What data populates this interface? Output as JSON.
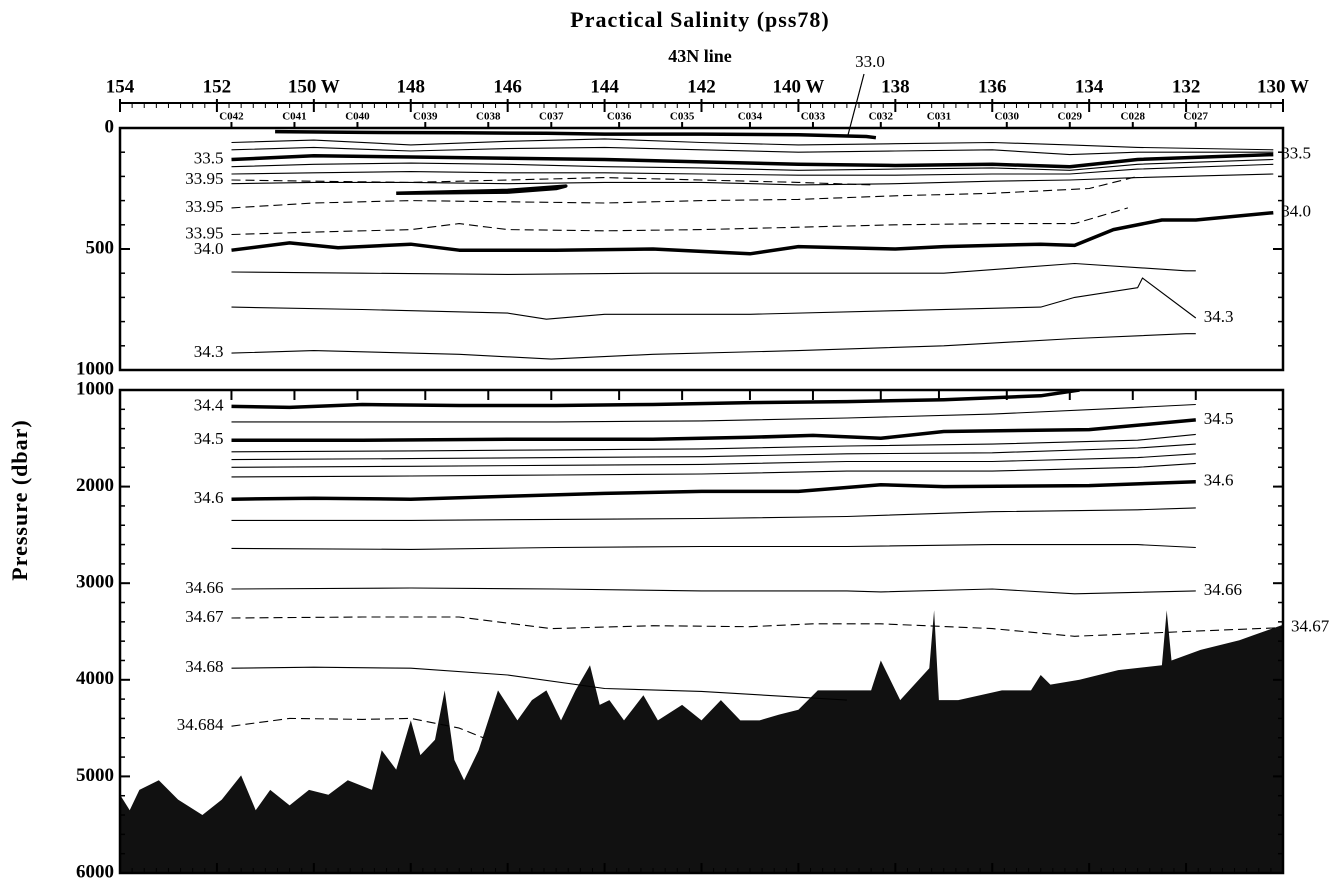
{
  "chart_data": {
    "type": "contour",
    "title": "Practical Salinity (pss78)",
    "subtitle": "43N  line",
    "ylabel": "Pressure (dbar)",
    "annotation": "33.0",
    "xlim": [
      154,
      130
    ],
    "xticks": [
      154,
      152,
      {
        "value": 150,
        "label": "150 W"
      },
      148,
      146,
      144,
      142,
      {
        "value": 140,
        "label": "140 W"
      },
      138,
      136,
      134,
      132,
      {
        "value": 130,
        "label": "130 W"
      }
    ],
    "xminor": 0.25,
    "stations": [
      "C042",
      "C041",
      "C040",
      "C039",
      "C038",
      "C037",
      "C036",
      "C035",
      "C034",
      "C033",
      "C032",
      "C031",
      "C030",
      "C029",
      "C028",
      "C027"
    ],
    "station_x": [
      151.7,
      150.4,
      149.1,
      147.7,
      146.4,
      145.1,
      143.7,
      142.4,
      141.0,
      139.7,
      138.3,
      137.1,
      135.7,
      134.4,
      133.1,
      131.8
    ],
    "panels": [
      {
        "ylim": [
          0,
          1000
        ],
        "yticks": [
          0,
          500,
          1000
        ],
        "yminor": 100
      },
      {
        "ylim": [
          1000,
          6000
        ],
        "yticks": [
          1000,
          2000,
          3000,
          4000,
          5000,
          6000
        ],
        "yminor": 200
      }
    ],
    "contours": [
      {
        "panel": 0,
        "label": null,
        "style": "thick",
        "x": [
          150.8,
          149,
          147,
          145.2,
          144,
          142,
          140,
          138.6,
          138.4
        ],
        "y": [
          15,
          18,
          20,
          22,
          25,
          25,
          28,
          35,
          40
        ]
      },
      {
        "panel": 0,
        "label": null,
        "style": "thin",
        "x": [
          151.7,
          150,
          148,
          146,
          144,
          142,
          140,
          138,
          136,
          134.4,
          133,
          130.2
        ],
        "y": [
          60,
          50,
          70,
          55,
          45,
          60,
          70,
          65,
          60,
          70,
          80,
          90
        ]
      },
      {
        "panel": 0,
        "label": null,
        "style": "thin",
        "x": [
          151.7,
          150,
          148,
          146,
          144,
          142,
          140,
          138,
          136,
          134.4,
          133,
          130.2
        ],
        "y": [
          90,
          80,
          95,
          85,
          80,
          90,
          100,
          95,
          90,
          110,
          100,
          100
        ]
      },
      {
        "panel": 0,
        "label": "33.5",
        "sides": [
          "left",
          "right"
        ],
        "style": "thick",
        "x": [
          151.7,
          150,
          148,
          146,
          144,
          142,
          140,
          138,
          136,
          134.4,
          133,
          130.2
        ],
        "y": [
          130,
          115,
          120,
          125,
          130,
          140,
          150,
          155,
          150,
          160,
          130,
          110
        ]
      },
      {
        "panel": 0,
        "label": null,
        "style": "thin",
        "x": [
          151.7,
          150,
          148,
          146,
          144,
          142,
          140,
          138,
          136,
          134.4,
          133,
          130.2
        ],
        "y": [
          160,
          150,
          145,
          150,
          160,
          165,
          175,
          170,
          165,
          175,
          150,
          130
        ]
      },
      {
        "panel": 0,
        "label": null,
        "style": "thin",
        "x": [
          151.7,
          150,
          148,
          146,
          144,
          142,
          140,
          138,
          136,
          134.4,
          133,
          130.2
        ],
        "y": [
          190,
          185,
          180,
          185,
          185,
          190,
          195,
          195,
          190,
          190,
          170,
          150
        ]
      },
      {
        "panel": 0,
        "label": null,
        "style": "thin",
        "x": [
          151.7,
          150,
          148,
          146,
          144,
          142,
          140,
          138,
          136,
          134.4,
          133,
          130.2
        ],
        "y": [
          230,
          225,
          225,
          230,
          225,
          225,
          235,
          230,
          220,
          215,
          205,
          190
        ]
      },
      {
        "panel": 0,
        "label": "33.95",
        "sides": [
          "left"
        ],
        "style": "dashed",
        "x": [
          151.7,
          150,
          148,
          146,
          144,
          142,
          140,
          138.5
        ],
        "y": [
          215,
          220,
          225,
          215,
          205,
          215,
          225,
          235
        ]
      },
      {
        "panel": 0,
        "label": null,
        "style": "thick",
        "x": [
          148.3,
          146,
          144.8,
          145,
          146,
          148.3
        ],
        "y": [
          270,
          258,
          240,
          250,
          265,
          270
        ]
      },
      {
        "panel": 0,
        "label": "33.95",
        "sides": [
          "left"
        ],
        "style": "dashed",
        "x": [
          151.7,
          150,
          148,
          146,
          144,
          142,
          140,
          138,
          136,
          134,
          133
        ],
        "y": [
          330,
          310,
          300,
          305,
          310,
          300,
          295,
          280,
          270,
          250,
          200
        ]
      },
      {
        "panel": 0,
        "label": "33.95",
        "sides": [
          "left"
        ],
        "style": "dashed",
        "x": [
          151.7,
          150,
          148,
          147,
          146,
          144,
          142,
          140,
          138,
          136,
          134.3,
          133.2
        ],
        "y": [
          440,
          430,
          420,
          395,
          420,
          425,
          420,
          410,
          400,
          395,
          395,
          330
        ]
      },
      {
        "panel": 0,
        "label": "34.0",
        "sides": [
          "left",
          "right"
        ],
        "style": "thick",
        "x": [
          151.7,
          150.5,
          149.5,
          148,
          147,
          145,
          143,
          141,
          140,
          138,
          137,
          135,
          134.3,
          133.5,
          132.5,
          131.8,
          130.2
        ],
        "y": [
          505,
          475,
          495,
          480,
          505,
          505,
          500,
          520,
          490,
          500,
          490,
          480,
          485,
          420,
          380,
          380,
          350
        ]
      },
      {
        "panel": 0,
        "label": null,
        "style": "thin",
        "x": [
          151.7,
          149,
          146,
          143,
          140,
          137,
          134.3,
          132,
          131.8
        ],
        "y": [
          595,
          600,
          605,
          600,
          600,
          600,
          560,
          590,
          590
        ]
      },
      {
        "panel": 0,
        "label": "34.3",
        "sides": [
          "right"
        ],
        "style": "thin",
        "x": [
          151.7,
          149,
          146,
          145.2,
          144,
          141,
          138,
          135,
          134.3,
          133,
          132.9,
          131.8
        ],
        "y": [
          740,
          750,
          765,
          790,
          770,
          770,
          755,
          740,
          700,
          660,
          620,
          785
        ]
      },
      {
        "panel": 0,
        "label": "34.3",
        "sides": [
          "left"
        ],
        "style": "thin",
        "x": [
          151.7,
          150,
          147,
          145.1,
          143,
          140,
          137,
          134.3,
          132,
          131.8
        ],
        "y": [
          930,
          920,
          935,
          955,
          935,
          920,
          900,
          870,
          850,
          850
        ]
      },
      {
        "panel": 1,
        "label": "34.4",
        "sides": [
          "left"
        ],
        "style": "thick",
        "x": [
          151.7,
          150.5,
          149,
          147,
          145,
          143,
          141,
          139,
          137,
          135,
          134.2
        ],
        "y": [
          1170,
          1180,
          1150,
          1160,
          1160,
          1150,
          1130,
          1120,
          1100,
          1060,
          1000
        ]
      },
      {
        "panel": 1,
        "label": null,
        "style": "thin",
        "x": [
          151.7,
          148,
          145,
          142,
          139,
          136,
          133,
          131.8
        ],
        "y": [
          1330,
          1330,
          1330,
          1320,
          1290,
          1250,
          1180,
          1150
        ]
      },
      {
        "panel": 1,
        "label": "34.5",
        "sides": [
          "left",
          "right"
        ],
        "style": "thick",
        "x": [
          151.7,
          149,
          146,
          143,
          141,
          139.7,
          138.3,
          137,
          134,
          131.8
        ],
        "y": [
          1520,
          1520,
          1510,
          1510,
          1490,
          1470,
          1500,
          1430,
          1410,
          1310
        ]
      },
      {
        "panel": 1,
        "label": null,
        "style": "thin",
        "x": [
          151.7,
          148,
          145,
          142,
          139,
          136,
          133,
          131.8
        ],
        "y": [
          1640,
          1630,
          1620,
          1610,
          1580,
          1560,
          1520,
          1460
        ]
      },
      {
        "panel": 1,
        "label": null,
        "style": "thin",
        "x": [
          151.7,
          148,
          145,
          142,
          139,
          136,
          133,
          131.8
        ],
        "y": [
          1720,
          1710,
          1700,
          1690,
          1660,
          1650,
          1600,
          1560
        ]
      },
      {
        "panel": 1,
        "label": null,
        "style": "thin",
        "x": [
          151.7,
          148,
          145,
          142,
          139,
          136,
          133,
          131.8
        ],
        "y": [
          1800,
          1790,
          1780,
          1770,
          1740,
          1740,
          1700,
          1660
        ]
      },
      {
        "panel": 1,
        "label": null,
        "style": "thin",
        "x": [
          151.7,
          148,
          145,
          142,
          139,
          136,
          133,
          131.8
        ],
        "y": [
          1900,
          1890,
          1880,
          1870,
          1840,
          1840,
          1800,
          1760
        ]
      },
      {
        "panel": 1,
        "label": "34.6",
        "sides": [
          "left",
          "right"
        ],
        "style": "thick",
        "x": [
          151.7,
          150,
          148,
          146,
          144,
          142,
          140,
          138.3,
          137,
          134,
          131.8
        ],
        "y": [
          2130,
          2120,
          2130,
          2100,
          2070,
          2050,
          2050,
          1980,
          2000,
          1990,
          1950
        ]
      },
      {
        "panel": 1,
        "label": null,
        "style": "thin",
        "x": [
          151.7,
          148,
          145,
          142,
          139,
          136,
          133,
          131.8
        ],
        "y": [
          2350,
          2350,
          2340,
          2330,
          2310,
          2260,
          2240,
          2220
        ]
      },
      {
        "panel": 1,
        "label": null,
        "style": "thin",
        "x": [
          151.7,
          148,
          145,
          142,
          139,
          136,
          133,
          131.8
        ],
        "y": [
          2640,
          2650,
          2630,
          2620,
          2620,
          2600,
          2600,
          2630
        ]
      },
      {
        "panel": 1,
        "label": "34.66",
        "sides": [
          "left",
          "right"
        ],
        "style": "thin",
        "x": [
          151.7,
          148,
          145,
          142,
          139,
          138.3,
          136,
          134.3,
          131.8
        ],
        "y": [
          3060,
          3050,
          3060,
          3080,
          3080,
          3090,
          3060,
          3110,
          3080
        ]
      },
      {
        "panel": 1,
        "label": "34.67",
        "sides": [
          "left",
          "right"
        ],
        "style": "dashed",
        "x": [
          151.7,
          149,
          147,
          145.1,
          143,
          141,
          139.7,
          138.3,
          136,
          134.3,
          132,
          130
        ],
        "y": [
          3360,
          3350,
          3350,
          3470,
          3440,
          3450,
          3420,
          3420,
          3470,
          3550,
          3500,
          3460
        ]
      },
      {
        "panel": 1,
        "label": "34.68",
        "sides": [
          "left"
        ],
        "style": "thin",
        "x": [
          151.7,
          150,
          148,
          146,
          144,
          142,
          140,
          139
        ],
        "y": [
          3880,
          3870,
          3880,
          3950,
          4090,
          4120,
          4180,
          4210
        ]
      },
      {
        "panel": 1,
        "label": "34.684",
        "sides": [
          "left"
        ],
        "style": "dashed",
        "x": [
          151.7,
          150.5,
          149,
          148,
          147,
          146.5
        ],
        "y": [
          4480,
          4400,
          4410,
          4400,
          4500,
          4600
        ]
      }
    ],
    "bathymetry": {
      "color": "#111111",
      "x": [
        154.0,
        153.8,
        153.6,
        153.2,
        152.8,
        152.3,
        151.9,
        151.5,
        151.2,
        150.9,
        150.5,
        150.1,
        149.7,
        149.3,
        148.8,
        148.6,
        148.3,
        148.0,
        147.8,
        147.5,
        147.3,
        147.1,
        146.9,
        146.6,
        146.2,
        145.8,
        145.5,
        145.2,
        144.9,
        144.6,
        144.3,
        144.1,
        143.9,
        143.6,
        143.2,
        142.9,
        142.4,
        142.0,
        141.6,
        141.2,
        140.8,
        140.4,
        140.0,
        139.6,
        139.2,
        138.9,
        138.5,
        138.3,
        137.9,
        137.3,
        137.2,
        137.1,
        136.7,
        135.8,
        135.2,
        135.0,
        134.8,
        134.2,
        133.4,
        132.5,
        132.4,
        132.3,
        131.7,
        130.9,
        130.0
      ],
      "y": [
        5190,
        5350,
        5140,
        5040,
        5240,
        5400,
        5240,
        4990,
        5350,
        5140,
        5300,
        5140,
        5190,
        5040,
        5140,
        4730,
        4930,
        4420,
        4780,
        4620,
        4110,
        4830,
        5040,
        4730,
        4110,
        4420,
        4210,
        4110,
        4420,
        4110,
        3850,
        4260,
        4210,
        4420,
        4160,
        4420,
        4260,
        4420,
        4210,
        4420,
        4420,
        4360,
        4310,
        4110,
        4110,
        4110,
        4110,
        3800,
        4210,
        3880,
        3280,
        4210,
        4210,
        4110,
        4110,
        3950,
        4050,
        4000,
        3900,
        3850,
        3280,
        3800,
        3690,
        3590,
        3430
      ]
    }
  }
}
